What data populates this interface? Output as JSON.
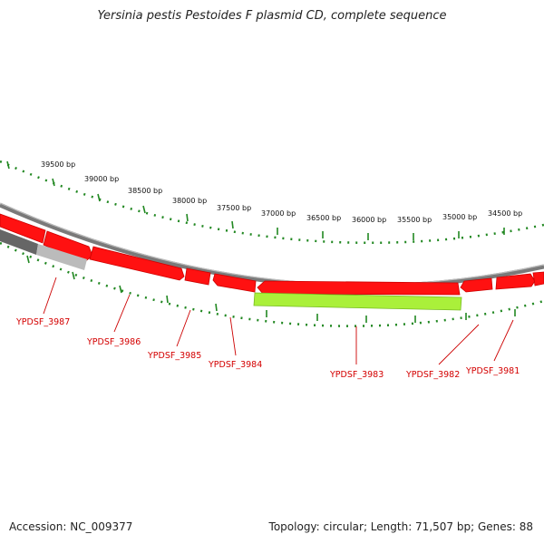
{
  "title": "Yersinia pestis Pestoides F plasmid CD, complete sequence",
  "accession": "Accession: NC_009377",
  "summary": "Topology: circular; Length: 71,507 bp; Genes: 88",
  "colors": {
    "gene_forward": "#ff0000",
    "gene_highlight": "#99ee22",
    "backbone": "#888888",
    "tick": "#228822",
    "label": "#cc0000"
  },
  "bp_ticks": [
    "39500 bp",
    "39000 bp",
    "38500 bp",
    "38000 bp",
    "37500 bp",
    "37000 bp",
    "36500 bp",
    "36000 bp",
    "35500 bp",
    "35000 bp",
    "34500 bp"
  ],
  "genes": [
    "YPDSF_3987",
    "YPDSF_3986",
    "YPDSF_3985",
    "YPDSF_3984",
    "YPDSF_3983",
    "YPDSF_3982",
    "YPDSF_3981"
  ]
}
